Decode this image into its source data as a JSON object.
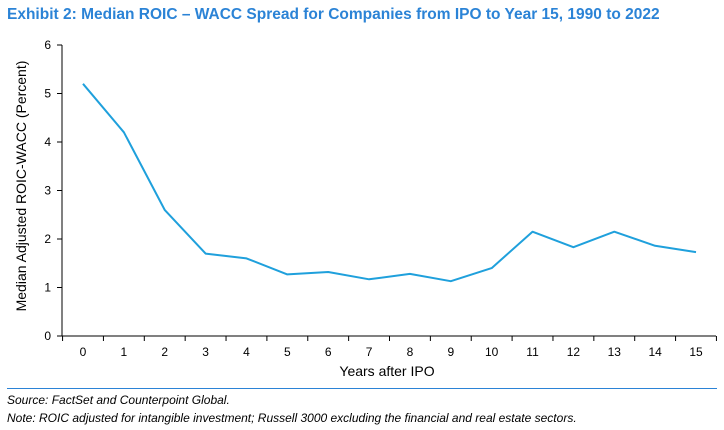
{
  "page": {
    "title": "Exhibit 2: Median ROIC – WACC Spread for Companies from IPO to Year 15, 1990 to 2022",
    "source": "Source: FactSet and Counterpoint Global.",
    "note": "Note: ROIC adjusted for intangible investment; Russell 3000 excluding the financial and real estate sectors."
  },
  "colors": {
    "title": "#2b83d6",
    "line": "#1fa0dc",
    "rule": "#2b83d6"
  },
  "chart_data": {
    "type": "line",
    "title": "",
    "xlabel": "Years after IPO",
    "ylabel": "Median Adjusted ROIC-WACC (Percent)",
    "x": [
      0,
      1,
      2,
      3,
      4,
      5,
      6,
      7,
      8,
      9,
      10,
      11,
      12,
      13,
      14,
      15
    ],
    "series": [
      {
        "values": [
          5.2,
          4.2,
          2.6,
          1.7,
          1.6,
          1.27,
          1.32,
          1.17,
          1.28,
          1.13,
          1.4,
          2.15,
          1.83,
          2.15,
          1.86,
          1.73
        ]
      }
    ],
    "xlim": [
      0,
      15
    ],
    "ylim": [
      0,
      6
    ],
    "yticks": [
      0,
      1,
      2,
      3,
      4,
      5,
      6
    ],
    "grid": false,
    "legend": "none"
  }
}
